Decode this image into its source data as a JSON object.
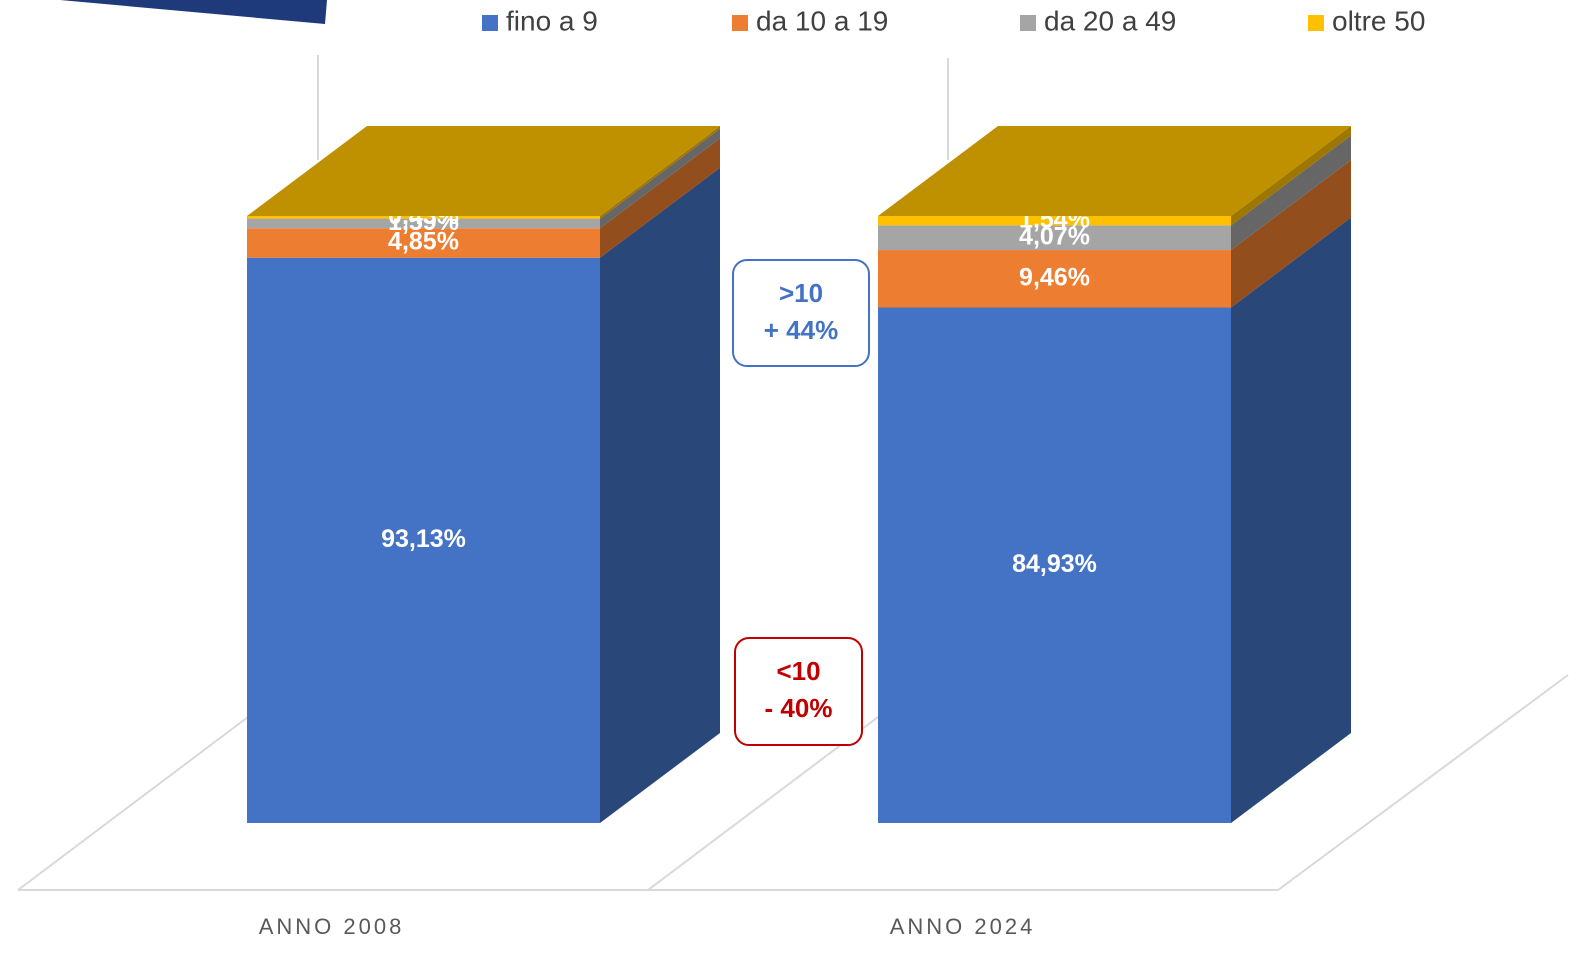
{
  "chart_data": {
    "type": "bar3d_stacked",
    "categories": [
      "ANNO 2008",
      "ANNO 2024"
    ],
    "series": [
      {
        "name": "fino a 9",
        "color": "#4472c4",
        "values": [
          93.13,
          84.93
        ],
        "value_labels": [
          "93,13%",
          "84,93%"
        ]
      },
      {
        "name": "da 10 a 19",
        "color": "#ed7d31",
        "values": [
          4.85,
          9.46
        ],
        "value_labels": [
          "4,85%",
          "9,46%"
        ]
      },
      {
        "name": "da 20 a 49",
        "color": "#a5a5a5",
        "values": [
          1.59,
          4.07
        ],
        "value_labels": [
          "1,59%",
          "4,07%"
        ]
      },
      {
        "name": "oltre 50",
        "color": "#ffc000",
        "values": [
          0.43,
          1.54
        ],
        "value_labels": [
          "0,43%",
          "1,54%"
        ]
      }
    ],
    "ylim": [
      0,
      100
    ],
    "legend": "top",
    "annotations": [
      {
        "lines": [
          ">10",
          "+ 44%"
        ],
        "color": "#4472c4"
      },
      {
        "lines": [
          "<10",
          "- 40%"
        ],
        "color": "#c00000"
      }
    ]
  }
}
